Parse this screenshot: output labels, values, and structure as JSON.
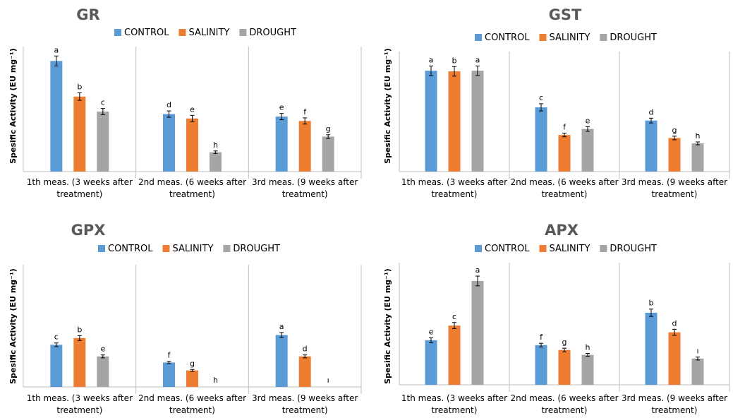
{
  "legend": {
    "control": "CONTROL",
    "salinity": "SALINITY",
    "drought": "DROUGHT"
  },
  "colors": {
    "control": "#5b9bd5",
    "salinity": "#ed7d31",
    "drought": "#a5a5a5",
    "axis": "#bfbfbf"
  },
  "chart_data": [
    {
      "type": "bar",
      "title": "GR",
      "ylabel": "Spesific Activity (EU mg⁻¹)",
      "categories_line1": [
        "1th meas. (3 weeks after",
        "2nd meas. (6 weeks after",
        "3rd meas. (9 weeks after"
      ],
      "categories_line2": [
        "treatment)",
        "treatment)",
        "treatment)"
      ],
      "ylim": [
        0,
        1
      ],
      "series": [
        {
          "name": "CONTROL",
          "values": [
            0.885,
            0.46,
            0.44
          ],
          "errors": [
            0.04,
            0.025,
            0.025
          ],
          "labels": [
            "a",
            "d",
            "e"
          ]
        },
        {
          "name": "SALINITY",
          "values": [
            0.6,
            0.425,
            0.405
          ],
          "errors": [
            0.03,
            0.025,
            0.025
          ],
          "labels": [
            "b",
            "e",
            "f"
          ]
        },
        {
          "name": "DROUGHT",
          "values": [
            0.48,
            0.155,
            0.28
          ],
          "errors": [
            0.025,
            0.01,
            0.015
          ],
          "labels": [
            "c",
            "h",
            "g"
          ]
        }
      ]
    },
    {
      "type": "bar",
      "title": "GST",
      "ylabel": "Spesific Activity (EU mg⁻¹)",
      "categories_line1": [
        "1th meas. (3 weeks after",
        "2nd meas. (6 weeks after",
        "3rd meas. (9 weeks after"
      ],
      "categories_line2": [
        "treatment)",
        "treatment)",
        "treatment)"
      ],
      "ylim": [
        0,
        1
      ],
      "series": [
        {
          "name": "CONTROL",
          "values": [
            0.84,
            0.535,
            0.425
          ],
          "errors": [
            0.04,
            0.03,
            0.02
          ],
          "labels": [
            "a",
            "c",
            "d"
          ]
        },
        {
          "name": "SALINITY",
          "values": [
            0.835,
            0.305,
            0.28
          ],
          "errors": [
            0.04,
            0.015,
            0.015
          ],
          "labels": [
            "b",
            "f",
            "g"
          ]
        },
        {
          "name": "DROUGHT",
          "values": [
            0.84,
            0.355,
            0.235
          ],
          "errors": [
            0.04,
            0.02,
            0.012
          ],
          "labels": [
            "a",
            "e",
            "h"
          ]
        }
      ]
    },
    {
      "type": "bar",
      "title": "GPX",
      "ylabel": "Spesific Activity (EU mg⁻¹)",
      "categories_line1": [
        "1th meas. (3 weeks after",
        "2nd meas. (6 weeks after",
        "3rd meas. (9 weeks after"
      ],
      "categories_line2": [
        "treatment)",
        "treatment)",
        "treatment)"
      ],
      "ylim": [
        0,
        1
      ],
      "series": [
        {
          "name": "CONTROL",
          "values": [
            0.345,
            0.2,
            0.425
          ],
          "errors": [
            0.015,
            0.01,
            0.02
          ],
          "labels": [
            "c",
            "f",
            "a"
          ]
        },
        {
          "name": "SALINITY",
          "values": [
            0.4,
            0.135,
            0.25
          ],
          "errors": [
            0.02,
            0.008,
            0.012
          ],
          "labels": [
            "b",
            "g",
            "d"
          ]
        },
        {
          "name": "DROUGHT",
          "values": [
            0.25,
            0.0,
            0.0
          ],
          "errors": [
            0.012,
            0,
            0
          ],
          "labels": [
            "e",
            "h",
            "ı"
          ]
        }
      ]
    },
    {
      "type": "bar",
      "title": "APX",
      "ylabel": "Spesific Activity (EU mg⁻¹)",
      "categories_line1": [
        "1th meas. (3 weeks after",
        "2nd meas. (6 weeks after",
        "3rd meas. (9 weeks after"
      ],
      "categories_line2": [
        "treatment)",
        "treatment)",
        "treatment)"
      ],
      "ylim": [
        0,
        1
      ],
      "series": [
        {
          "name": "CONTROL",
          "values": [
            0.365,
            0.325,
            0.59
          ],
          "errors": [
            0.02,
            0.015,
            0.03
          ],
          "labels": [
            "e",
            "f",
            "b"
          ]
        },
        {
          "name": "SALINITY",
          "values": [
            0.485,
            0.285,
            0.43
          ],
          "errors": [
            0.025,
            0.015,
            0.025
          ],
          "labels": [
            "c",
            "g",
            "d"
          ]
        },
        {
          "name": "DROUGHT",
          "values": [
            0.85,
            0.245,
            0.215
          ],
          "errors": [
            0.04,
            0.012,
            0.012
          ],
          "labels": [
            "a",
            "h",
            "ı"
          ]
        }
      ]
    }
  ]
}
